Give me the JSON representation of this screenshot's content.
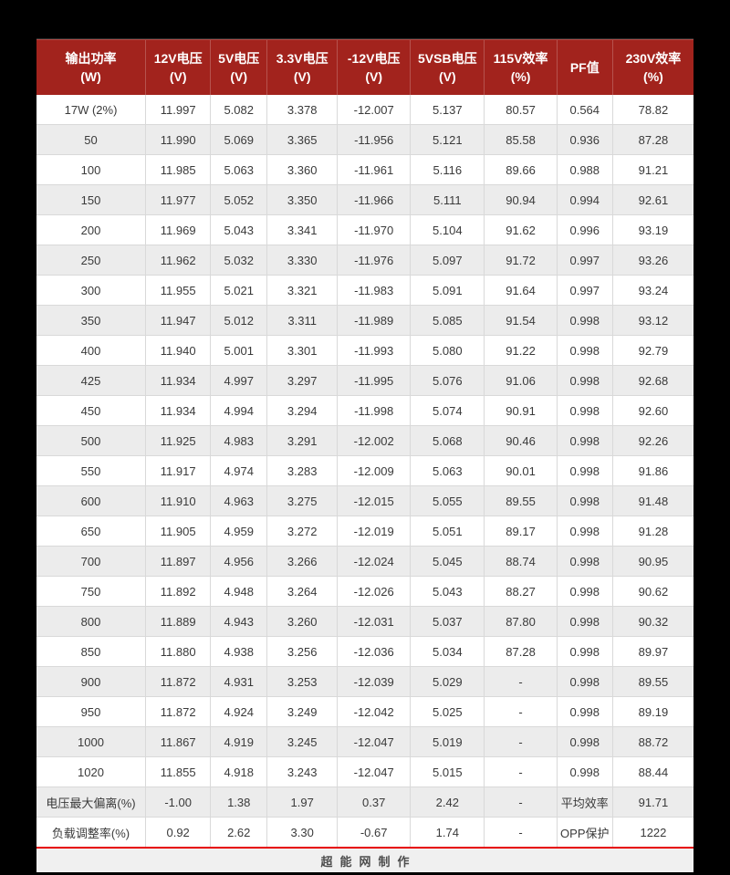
{
  "colors": {
    "header_bg": "#a2231d",
    "accent_line": "#e60000",
    "row_alt": "#ececec",
    "footer_bg": "#f0f0f0",
    "page_bg": "#000000"
  },
  "chart_data": {
    "type": "table",
    "title": "",
    "legend_position": "none",
    "columns": [
      {
        "label": "输出功率",
        "unit": "(W)"
      },
      {
        "label": "12V电压",
        "unit": "(V)"
      },
      {
        "label": "5V电压",
        "unit": "(V)"
      },
      {
        "label": "3.3V电压",
        "unit": "(V)"
      },
      {
        "label": "-12V电压",
        "unit": "(V)"
      },
      {
        "label": "5VSB电压",
        "unit": "(V)"
      },
      {
        "label": "115V效率",
        "unit": "(%)"
      },
      {
        "label": "PF值",
        "unit": ""
      },
      {
        "label": "230V效率",
        "unit": "(%)"
      }
    ],
    "rows": [
      [
        "17W (2%)",
        "11.997",
        "5.082",
        "3.378",
        "-12.007",
        "5.137",
        "80.57",
        "0.564",
        "78.82"
      ],
      [
        "50",
        "11.990",
        "5.069",
        "3.365",
        "-11.956",
        "5.121",
        "85.58",
        "0.936",
        "87.28"
      ],
      [
        "100",
        "11.985",
        "5.063",
        "3.360",
        "-11.961",
        "5.116",
        "89.66",
        "0.988",
        "91.21"
      ],
      [
        "150",
        "11.977",
        "5.052",
        "3.350",
        "-11.966",
        "5.111",
        "90.94",
        "0.994",
        "92.61"
      ],
      [
        "200",
        "11.969",
        "5.043",
        "3.341",
        "-11.970",
        "5.104",
        "91.62",
        "0.996",
        "93.19"
      ],
      [
        "250",
        "11.962",
        "5.032",
        "3.330",
        "-11.976",
        "5.097",
        "91.72",
        "0.997",
        "93.26"
      ],
      [
        "300",
        "11.955",
        "5.021",
        "3.321",
        "-11.983",
        "5.091",
        "91.64",
        "0.997",
        "93.24"
      ],
      [
        "350",
        "11.947",
        "5.012",
        "3.311",
        "-11.989",
        "5.085",
        "91.54",
        "0.998",
        "93.12"
      ],
      [
        "400",
        "11.940",
        "5.001",
        "3.301",
        "-11.993",
        "5.080",
        "91.22",
        "0.998",
        "92.79"
      ],
      [
        "425",
        "11.934",
        "4.997",
        "3.297",
        "-11.995",
        "5.076",
        "91.06",
        "0.998",
        "92.68"
      ],
      [
        "450",
        "11.934",
        "4.994",
        "3.294",
        "-11.998",
        "5.074",
        "90.91",
        "0.998",
        "92.60"
      ],
      [
        "500",
        "11.925",
        "4.983",
        "3.291",
        "-12.002",
        "5.068",
        "90.46",
        "0.998",
        "92.26"
      ],
      [
        "550",
        "11.917",
        "4.974",
        "3.283",
        "-12.009",
        "5.063",
        "90.01",
        "0.998",
        "91.86"
      ],
      [
        "600",
        "11.910",
        "4.963",
        "3.275",
        "-12.015",
        "5.055",
        "89.55",
        "0.998",
        "91.48"
      ],
      [
        "650",
        "11.905",
        "4.959",
        "3.272",
        "-12.019",
        "5.051",
        "89.17",
        "0.998",
        "91.28"
      ],
      [
        "700",
        "11.897",
        "4.956",
        "3.266",
        "-12.024",
        "5.045",
        "88.74",
        "0.998",
        "90.95"
      ],
      [
        "750",
        "11.892",
        "4.948",
        "3.264",
        "-12.026",
        "5.043",
        "88.27",
        "0.998",
        "90.62"
      ],
      [
        "800",
        "11.889",
        "4.943",
        "3.260",
        "-12.031",
        "5.037",
        "87.80",
        "0.998",
        "90.32"
      ],
      [
        "850",
        "11.880",
        "4.938",
        "3.256",
        "-12.036",
        "5.034",
        "87.28",
        "0.998",
        "89.97"
      ],
      [
        "900",
        "11.872",
        "4.931",
        "3.253",
        "-12.039",
        "5.029",
        "-",
        "0.998",
        "89.55"
      ],
      [
        "950",
        "11.872",
        "4.924",
        "3.249",
        "-12.042",
        "5.025",
        "-",
        "0.998",
        "89.19"
      ],
      [
        "1000",
        "11.867",
        "4.919",
        "3.245",
        "-12.047",
        "5.019",
        "-",
        "0.998",
        "88.72"
      ],
      [
        "1020",
        "11.855",
        "4.918",
        "3.243",
        "-12.047",
        "5.015",
        "-",
        "0.998",
        "88.44"
      ],
      [
        "电压最大偏离(%)",
        "-1.00",
        "1.38",
        "1.97",
        "0.37",
        "2.42",
        "-",
        "平均效率",
        "91.71"
      ],
      [
        "负载调整率(%)",
        "0.92",
        "2.62",
        "3.30",
        "-0.67",
        "1.74",
        "-",
        "OPP保护",
        "1222"
      ]
    ]
  },
  "footer": {
    "credit": "超能网制作"
  }
}
